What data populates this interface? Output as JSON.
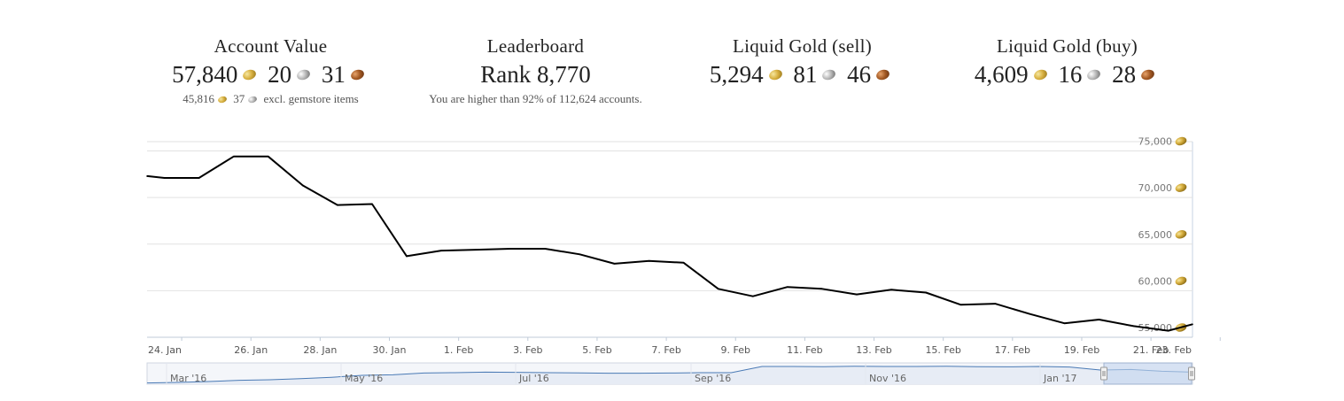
{
  "stats": [
    {
      "title": "Account Value",
      "gold": "57,840",
      "silver": "20",
      "copper": "31",
      "sub_gold": "45,816",
      "sub_silver": "37",
      "sub_text": "excl. gemstore items"
    },
    {
      "title": "Leaderboard",
      "value": "Rank 8,770",
      "sub_text": "You are higher than 92% of 112,624 accounts."
    },
    {
      "title": "Liquid Gold (sell)",
      "gold": "5,294",
      "silver": "81",
      "copper": "46"
    },
    {
      "title": "Liquid Gold (buy)",
      "gold": "4,609",
      "silver": "16",
      "copper": "28"
    }
  ],
  "chart_data": {
    "type": "line",
    "title": "",
    "xlabel": "",
    "ylabel": "",
    "y_unit_icon": "gold-coin-icon",
    "ylim": [
      55000,
      76000
    ],
    "yticks": [
      55000,
      60000,
      65000,
      70000,
      75000
    ],
    "ytick_labels": [
      "55,000",
      "60,000",
      "65,000",
      "70,000",
      "75,000"
    ],
    "xticks": [
      "24. Jan",
      "26. Jan",
      "28. Jan",
      "30. Jan",
      "1. Feb",
      "3. Feb",
      "5. Feb",
      "7. Feb",
      "9. Feb",
      "11. Feb",
      "13. Feb",
      "15. Feb",
      "17. Feb",
      "19. Feb",
      "21. Feb",
      "23. Feb"
    ],
    "grid": true,
    "line_color": "#000000",
    "series": [
      {
        "values": [
          {
            "x": 23.0,
            "y": 72300
          },
          {
            "x": 23.5,
            "y": 72100
          },
          {
            "x": 24.5,
            "y": 72100
          },
          {
            "x": 25.5,
            "y": 74400
          },
          {
            "x": 26.5,
            "y": 74400
          },
          {
            "x": 27.5,
            "y": 71300
          },
          {
            "x": 28.5,
            "y": 69200
          },
          {
            "x": 29.5,
            "y": 69300
          },
          {
            "x": 30.5,
            "y": 63700
          },
          {
            "x": 31.5,
            "y": 64300
          },
          {
            "x": 32.5,
            "y": 64400
          },
          {
            "x": 33.5,
            "y": 64500
          },
          {
            "x": 34.5,
            "y": 64500
          },
          {
            "x": 35.5,
            "y": 63900
          },
          {
            "x": 36.5,
            "y": 62900
          },
          {
            "x": 37.5,
            "y": 63200
          },
          {
            "x": 38.5,
            "y": 63000
          },
          {
            "x": 39.5,
            "y": 60200
          },
          {
            "x": 40.5,
            "y": 59400
          },
          {
            "x": 41.5,
            "y": 60400
          },
          {
            "x": 42.5,
            "y": 60200
          },
          {
            "x": 43.5,
            "y": 59600
          },
          {
            "x": 44.5,
            "y": 60100
          },
          {
            "x": 45.5,
            "y": 59800
          },
          {
            "x": 46.5,
            "y": 58500
          },
          {
            "x": 47.5,
            "y": 58600
          },
          {
            "x": 48.5,
            "y": 57500
          },
          {
            "x": 49.5,
            "y": 56500
          },
          {
            "x": 50.5,
            "y": 56900
          },
          {
            "x": 51.5,
            "y": 56200
          },
          {
            "x": 52.5,
            "y": 55700
          },
          {
            "x": 53.2,
            "y": 56400
          }
        ]
      }
    ],
    "navigator": {
      "labels": [
        "Mar '16",
        "May '16",
        "Jul '16",
        "Sep '16",
        "Nov '16",
        "Jan '17"
      ],
      "line_color": "#4a7ab5",
      "fill_color": "#e7ecf5",
      "selection_color": "#c3d6ee",
      "values": [
        0.02,
        0.05,
        0.1,
        0.17,
        0.2,
        0.26,
        0.34,
        0.45,
        0.48,
        0.58,
        0.6,
        0.63,
        0.62,
        0.6,
        0.59,
        0.57,
        0.57,
        0.58,
        0.6,
        0.6,
        0.95,
        0.95,
        0.94,
        0.96,
        0.95,
        0.95,
        0.96,
        0.94,
        0.93,
        0.95,
        0.92,
        0.75,
        0.78,
        0.68,
        0.63
      ]
    }
  }
}
